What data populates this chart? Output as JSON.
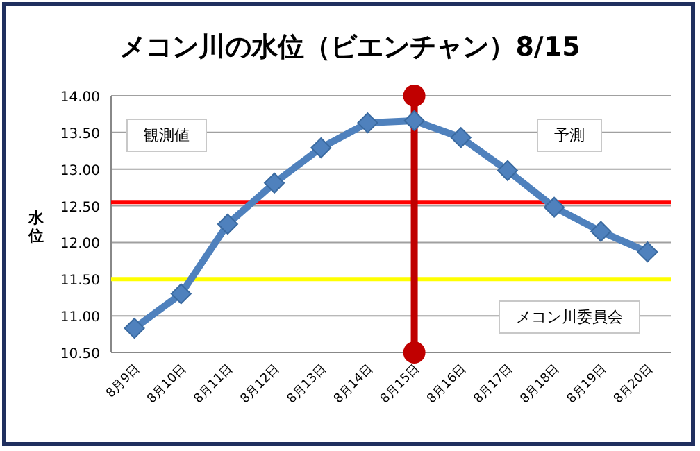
{
  "chart_data": {
    "type": "line",
    "title": "メコン川の水位（ビエンチャン）8/15",
    "ylabel": "水位",
    "categories": [
      "8月9日",
      "8月10日",
      "8月11日",
      "8月12日",
      "8月13日",
      "8月14日",
      "8月15日",
      "8月16日",
      "8月17日",
      "8月18日",
      "8月19日",
      "8月20日"
    ],
    "series": [
      {
        "color": "#4f81bd",
        "values": [
          10.83,
          11.3,
          12.25,
          12.81,
          13.29,
          13.63,
          13.66,
          13.43,
          12.98,
          12.48,
          12.15,
          11.87
        ]
      }
    ],
    "ylim": [
      10.5,
      14.0
    ],
    "yticks": [
      {
        "value": 10.5,
        "label": "10.50"
      },
      {
        "value": 11.0,
        "label": "11.00"
      },
      {
        "value": 11.5,
        "label": "11.50"
      },
      {
        "value": 12.0,
        "label": "12.00"
      },
      {
        "value": 12.5,
        "label": "12.50"
      },
      {
        "value": 13.0,
        "label": "13.00"
      },
      {
        "value": 13.5,
        "label": "13.50"
      },
      {
        "value": 14.0,
        "label": "14.00"
      }
    ],
    "ref_lines": [
      {
        "axis": "y",
        "value": 12.55,
        "color": "#ff0000"
      },
      {
        "axis": "y",
        "value": 11.5,
        "color": "#ffff00"
      },
      {
        "axis": "x",
        "value": "8月15日",
        "color": "#c00000"
      }
    ],
    "annotations": [
      "観測値",
      "予測",
      "メコン川委員会"
    ],
    "grid": "y",
    "marker": "diamond",
    "line_style": "solid"
  }
}
